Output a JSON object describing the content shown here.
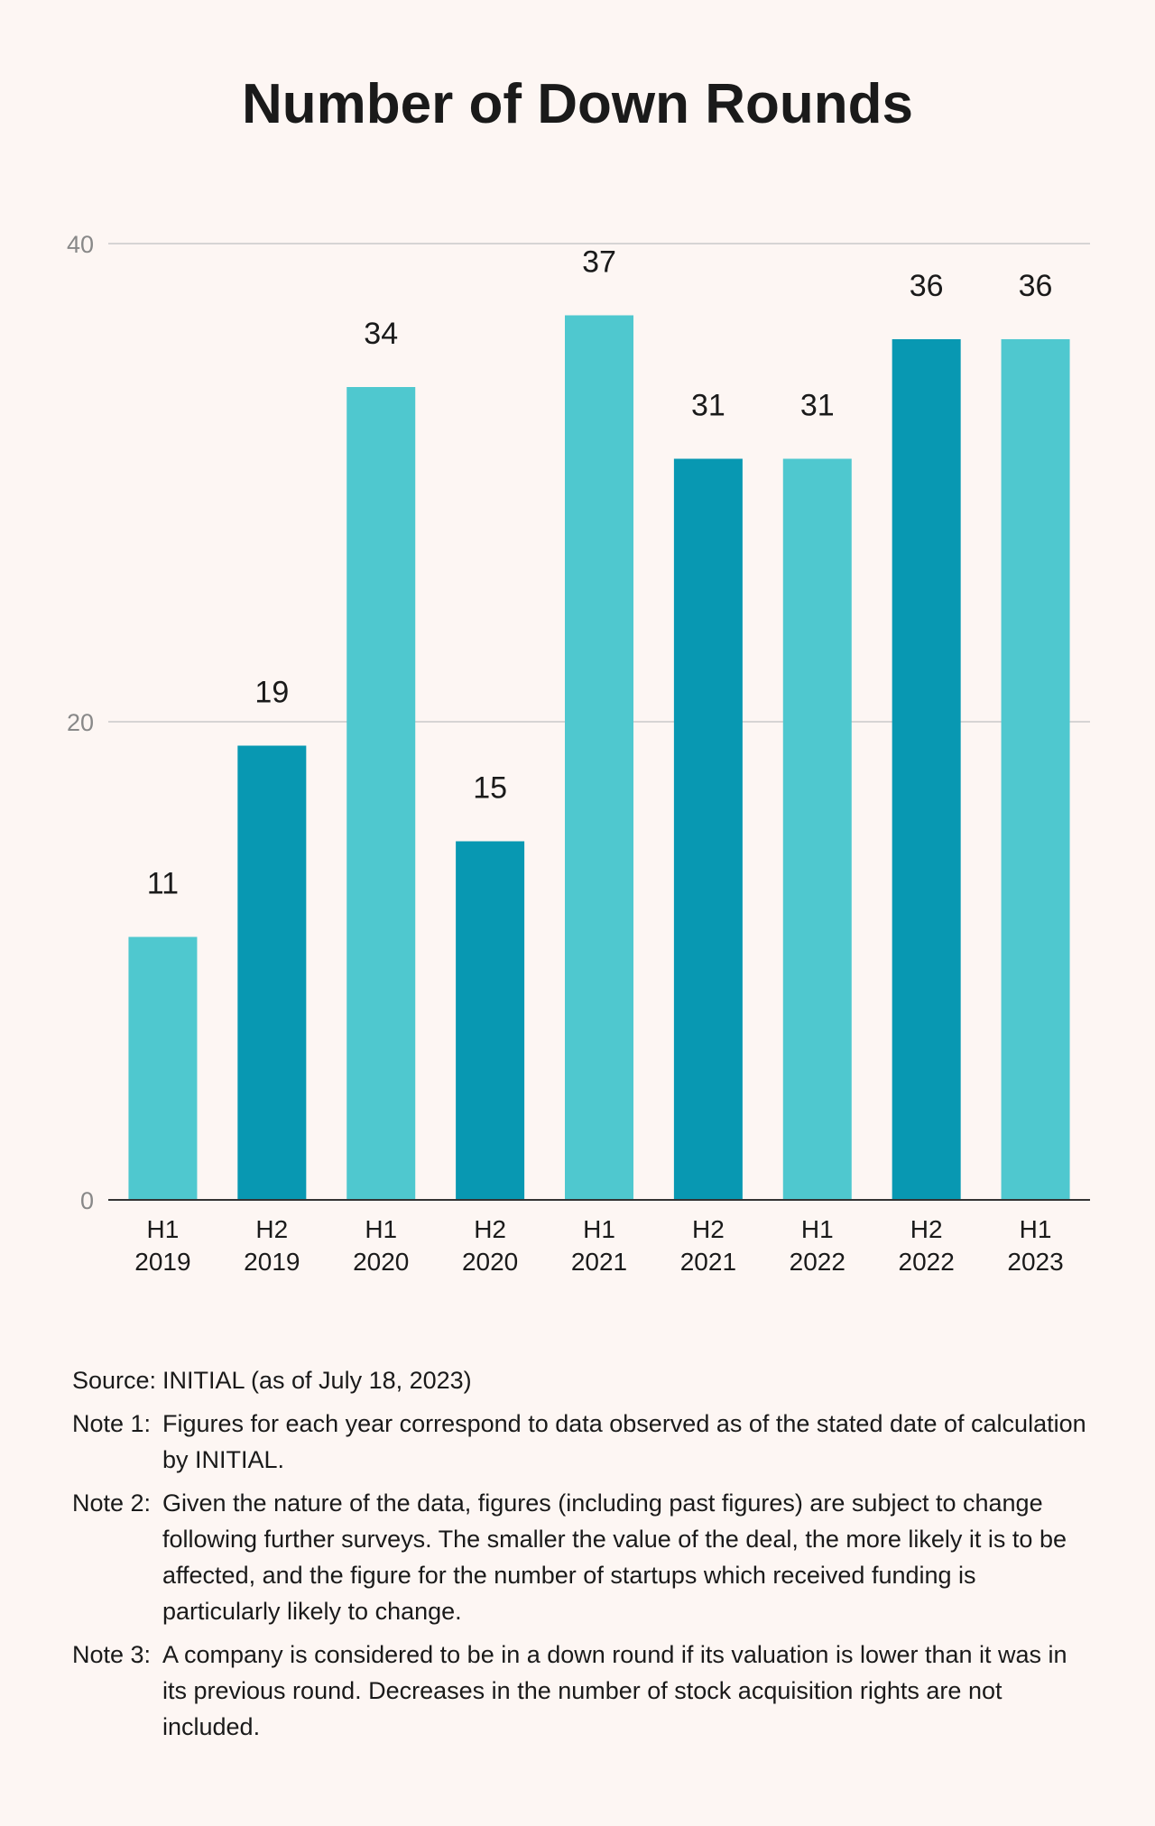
{
  "chart_data": {
    "type": "bar",
    "title": "Number of Down Rounds",
    "categories": [
      [
        "H1",
        "2019"
      ],
      [
        "H2",
        "2019"
      ],
      [
        "H1",
        "2020"
      ],
      [
        "H2",
        "2020"
      ],
      [
        "H1",
        "2021"
      ],
      [
        "H2",
        "2021"
      ],
      [
        "H1",
        "2022"
      ],
      [
        "H2",
        "2022"
      ],
      [
        "H1",
        "2023"
      ]
    ],
    "values": [
      11,
      19,
      34,
      15,
      37,
      31,
      31,
      36,
      36
    ],
    "ylim": [
      0,
      40
    ],
    "yticks": [
      0,
      20,
      40
    ],
    "xlabel": "",
    "ylabel": "",
    "grid": true,
    "colors": {
      "H1": "#4fc8cf",
      "H2": "#0898b2",
      "gridline": "#c9c9c9",
      "axis": "#333333",
      "tick_label": "#888888"
    }
  },
  "notes": [
    {
      "label": "Source:",
      "text": "INITIAL (as of July 18, 2023)"
    },
    {
      "label": "Note 1:",
      "text": "Figures for each year correspond to data observed as of the stated date of calculation by INITIAL."
    },
    {
      "label": "Note 2:",
      "text": "Given the nature of the data, figures (including past figures) are subject to change following further surveys. The smaller the value of the deal, the more likely it is to be affected, and the figure for the number of startups which received funding is particularly likely to change."
    },
    {
      "label": "Note 3:",
      "text": "A company is considered to be in a down round if its valuation is lower than it was in its previous round. Decreases in the number of stock acquisition rights are not included."
    }
  ]
}
